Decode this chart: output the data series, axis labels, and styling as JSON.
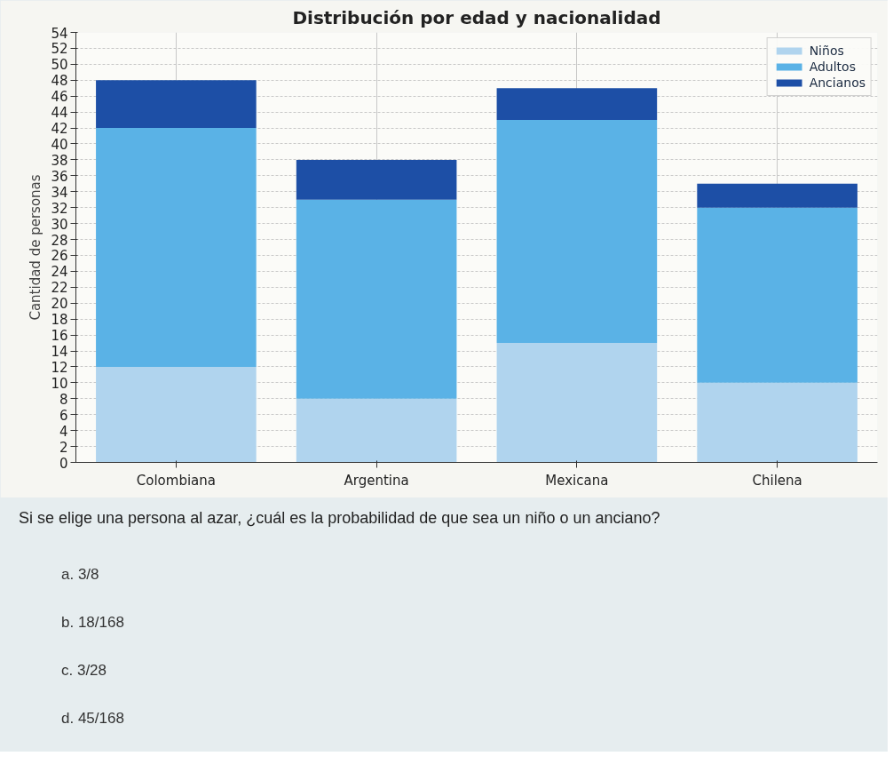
{
  "chart_data": {
    "type": "bar",
    "title": "Distribución por edad y nacionalidad",
    "ylabel": "Cantidad de personas",
    "categories": [
      "Colombiana",
      "Argentina",
      "Mexicana",
      "Chilena"
    ],
    "stacked": true,
    "series": [
      {
        "name": "Niños",
        "color": "#b0d4ee",
        "values": [
          12,
          8,
          15,
          10
        ]
      },
      {
        "name": "Adultos",
        "color": "#5ab2e6",
        "values": [
          30,
          25,
          28,
          22
        ]
      },
      {
        "name": "Ancianos",
        "color": "#1d4fa6",
        "values": [
          6,
          5,
          4,
          3
        ]
      }
    ],
    "ylim": [
      0,
      54
    ],
    "yticks": [
      0,
      2,
      4,
      6,
      8,
      10,
      12,
      14,
      16,
      18,
      20,
      22,
      24,
      26,
      28,
      30,
      32,
      34,
      36,
      38,
      40,
      42,
      44,
      46,
      48,
      50,
      52,
      54
    ],
    "grid": true,
    "legend": "top right",
    "annotations": [
      "Si se elige una persona al azar, ¿cuál es la probabilidad de que sea un niño o un anciano?",
      "a. 3/8",
      "b. 18/168",
      "c. 3/28",
      "d. 45/168"
    ]
  }
}
